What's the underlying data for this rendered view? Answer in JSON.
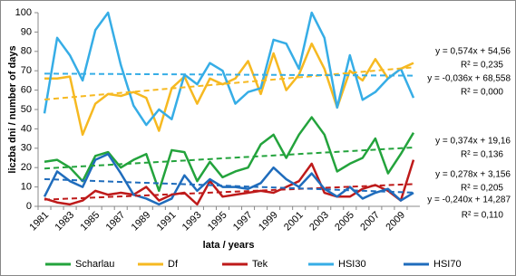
{
  "chart_data": {
    "type": "line",
    "x_label": "lata / years",
    "y_label": "liczba dni / number of days",
    "categories": [
      "1981",
      null,
      "1983",
      null,
      "1985",
      null,
      "1987",
      null,
      "1989",
      null,
      "1991",
      null,
      "1993",
      null,
      "1995",
      null,
      "1997",
      null,
      "1999",
      null,
      "2001",
      null,
      "2003",
      null,
      "2005",
      null,
      "2007",
      null,
      "2009",
      null
    ],
    "ylim": [
      0,
      100
    ],
    "yticks": [
      0,
      10,
      20,
      30,
      40,
      50,
      60,
      70,
      80,
      90,
      100
    ],
    "series": [
      {
        "name": "Scharlau",
        "color": "#23a33c",
        "values": [
          23,
          24,
          20,
          13,
          26,
          28,
          20,
          24,
          27,
          8,
          29,
          28,
          13,
          23,
          15,
          18,
          20,
          32,
          37,
          25,
          37,
          46,
          37,
          18,
          22,
          25,
          35,
          17,
          27,
          38
        ]
      },
      {
        "name": "Df",
        "color": "#f6b921",
        "values": [
          66,
          66,
          67,
          37,
          53,
          58,
          57,
          59,
          56,
          39,
          61,
          67,
          53,
          66,
          63,
          66,
          75,
          58,
          79,
          60,
          68,
          84,
          71,
          51,
          70,
          65,
          76,
          66,
          71,
          74
        ]
      },
      {
        "name": "Tek",
        "color": "#be1a1a",
        "values": [
          4,
          2,
          1,
          3,
          8,
          6,
          7,
          6,
          10,
          3,
          6,
          7,
          1,
          13,
          5,
          6,
          7,
          8,
          7,
          10,
          13,
          22,
          7,
          5,
          5,
          9,
          11,
          8,
          3,
          24
        ]
      },
      {
        "name": "HSI30",
        "color": "#36ade6",
        "values": [
          48,
          87,
          78,
          65,
          91,
          100,
          73,
          52,
          42,
          50,
          45,
          68,
          63,
          74,
          70,
          53,
          59,
          61,
          86,
          84,
          71,
          100,
          87,
          51,
          78,
          55,
          59,
          66,
          71,
          56
        ]
      },
      {
        "name": "HSI70",
        "color": "#1f6cbc",
        "values": [
          5,
          18,
          13,
          10,
          24,
          27,
          17,
          6,
          4,
          1,
          4,
          16,
          8,
          14,
          10,
          10,
          9,
          12,
          20,
          14,
          10,
          17,
          9,
          5,
          10,
          4,
          7,
          9,
          3,
          7
        ]
      }
    ],
    "trendlines": [
      {
        "series": 1,
        "label": "y = 0,574x + 54,56",
        "r2_label": "R² = 0,235",
        "slope": 0.574,
        "intercept": 54.56,
        "r2": 0.235
      },
      {
        "series": 3,
        "label": "y = -0,036x + 68,558",
        "r2_label": "R² = 0,000",
        "slope": -0.036,
        "intercept": 68.558,
        "r2": 0
      },
      {
        "series": 0,
        "label": "y = 0,374x + 19,16",
        "r2_label": "R² = 0,136",
        "slope": 0.374,
        "intercept": 19.16,
        "r2": 0.136
      },
      {
        "series": 2,
        "label": "y = 0,278x + 3,156",
        "r2_label": "R² = 0,205",
        "slope": 0.278,
        "intercept": 3.156,
        "r2": 0.205
      },
      {
        "series": 4,
        "label": "y = -0,240x + 14,287",
        "r2_label": "R² = 0,110",
        "slope": -0.24,
        "intercept": 14.287,
        "r2": 0.11
      }
    ]
  }
}
